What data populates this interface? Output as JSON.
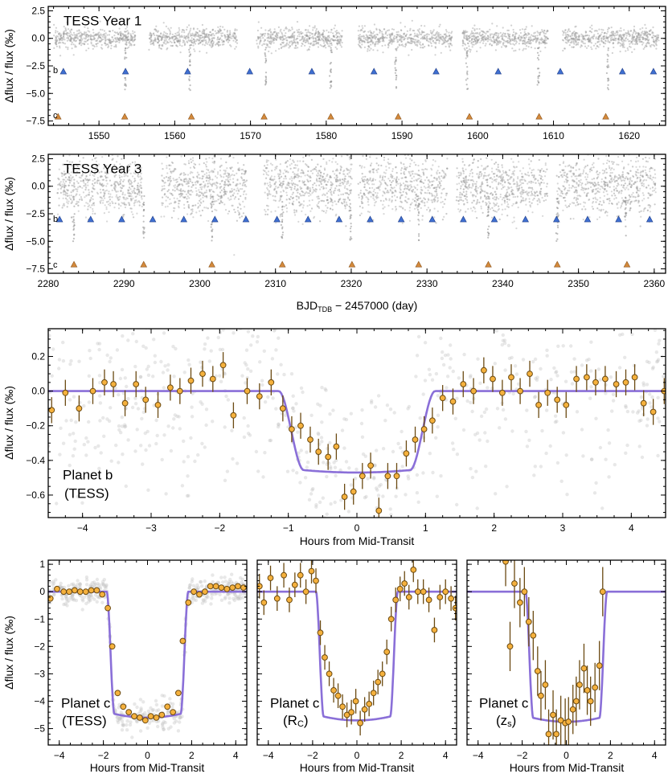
{
  "chart_data": [
    {
      "id": "tess-year1",
      "type": "scatter",
      "title": "TESS Year 1",
      "ylabel": "Δflux / flux (‰)",
      "xlabel": "",
      "xlim": [
        1543.3,
        1624.8
      ],
      "ylim": [
        -7.9,
        2.9
      ],
      "xticks": [
        1550,
        1560,
        1570,
        1580,
        1590,
        1600,
        1610,
        1620
      ],
      "yticks": [
        2.5,
        0.0,
        -2.5,
        -5.0,
        -7.5
      ],
      "ytick_labels": [
        "2.5",
        "0.0",
        "−2.5",
        "−5.0",
        "−7.5"
      ],
      "flux_scatter_per_1000": 0.45,
      "data_gaps": [
        [
          1554.8,
          1556.6
        ],
        [
          1568.3,
          1570.7
        ],
        [
          1582.1,
          1584.2
        ],
        [
          1596.6,
          1598.0
        ],
        [
          1609.3,
          1611.2
        ]
      ],
      "data_range": [
        1544.0,
        1623.9
      ],
      "planet_b": {
        "label": "b",
        "y_marker": -3.0,
        "color": "#3f6fd1",
        "transit_times": [
          1545.3,
          1553.5,
          1561.7,
          1569.9,
          1578.1,
          1586.3,
          1594.5,
          1602.7,
          1610.9,
          1619.1,
          1623.2
        ],
        "dip_times": [
          1553.5,
          1562.0,
          1572.0,
          1580.6,
          1589.2,
          1598.6,
          1608.0,
          1617.2
        ],
        "depth": -4.7
      },
      "planet_c": {
        "label": "c",
        "y_marker": -7.1,
        "color": "#d48a3c",
        "transit_times": [
          1544.6,
          1553.4,
          1562.2,
          1571.8,
          1580.6,
          1589.5,
          1598.9,
          1608.1,
          1616.9
        ]
      }
    },
    {
      "id": "tess-year3",
      "type": "scatter",
      "title": "TESS Year 3",
      "ylabel": "Δflux / flux (‰)",
      "xlabel": "BJD_TDB − 2457000 (day)",
      "xlim": [
        2280,
        2361.5
      ],
      "ylim": [
        -7.9,
        2.9
      ],
      "xticks": [
        2280,
        2290,
        2300,
        2310,
        2320,
        2330,
        2340,
        2350,
        2360
      ],
      "yticks": [
        2.5,
        0.0,
        -2.5,
        -5.0,
        -7.5
      ],
      "ytick_labels": [
        "2.5",
        "0.0",
        "−2.5",
        "−5.0",
        "−7.5"
      ],
      "flux_scatter_per_1000": 1.3,
      "data_gaps": [
        [
          2292.4,
          2294.9
        ],
        [
          2306.2,
          2308.4
        ],
        [
          2320.1,
          2320.9
        ],
        [
          2332.7,
          2333.9
        ],
        [
          2345.9,
          2347.1
        ]
      ],
      "data_range": [
        2281.2,
        2360.2
      ],
      "planet_b": {
        "label": "b",
        "y_marker": -3.0,
        "color": "#3f6fd1",
        "transit_times": [
          2281.5,
          2285.6,
          2289.7,
          2293.8,
          2297.9,
          2302.0,
          2306.1,
          2310.2,
          2314.3,
          2318.4,
          2322.5,
          2326.6,
          2330.7,
          2334.8,
          2338.9,
          2343.0,
          2347.1,
          2351.2,
          2355.3,
          2359.4
        ],
        "dip_times": [
          2283.4,
          2292.6,
          2301.6,
          2310.9,
          2319.9,
          2328.9,
          2338.1,
          2347.2,
          2356.2
        ],
        "depth": -5.0
      },
      "planet_c": {
        "label": "c",
        "y_marker": -7.1,
        "color": "#d48a3c",
        "transit_times": [
          2283.4,
          2292.6,
          2301.6,
          2310.9,
          2320.1,
          2328.9,
          2338.1,
          2347.2,
          2356.4
        ]
      }
    },
    {
      "id": "planet-b-tess",
      "type": "scatter",
      "label_line1": "Planet b",
      "label_line2": "(TESS)",
      "xlabel": "Hours from Mid-Transit",
      "ylabel": "Δflux / flux (‰)",
      "xlim": [
        -4.5,
        4.5
      ],
      "ylim": [
        -0.73,
        0.36
      ],
      "xticks": [
        -4,
        -3,
        -2,
        -1,
        0,
        1,
        2,
        3,
        4
      ],
      "xtick_labels": [
        "−4",
        "−3",
        "−2",
        "−1",
        "0",
        "1",
        "2",
        "3",
        "4"
      ],
      "yticks": [
        0.2,
        0.0,
        -0.2,
        -0.4,
        -0.6
      ],
      "ytick_labels": [
        "0.2",
        "0.0",
        "−0.2",
        "−0.4",
        "−0.6"
      ],
      "model": {
        "t14": 2.28,
        "t23": 1.55,
        "depth": -0.47,
        "curvature": -0.03,
        "color": "#8a6fd8"
      },
      "errorbar": 0.075,
      "binned": [
        {
          "x": -4.45,
          "y": -0.11
        },
        {
          "x": -4.25,
          "y": -0.01
        },
        {
          "x": -4.05,
          "y": -0.1
        },
        {
          "x": -3.85,
          "y": 0.0
        },
        {
          "x": -3.68,
          "y": 0.05
        },
        {
          "x": -3.55,
          "y": 0.04
        },
        {
          "x": -3.38,
          "y": -0.07
        },
        {
          "x": -3.22,
          "y": 0.04
        },
        {
          "x": -3.08,
          "y": -0.05
        },
        {
          "x": -2.9,
          "y": -0.08
        },
        {
          "x": -2.72,
          "y": 0.02
        },
        {
          "x": -2.58,
          "y": 0.0
        },
        {
          "x": -2.42,
          "y": 0.06
        },
        {
          "x": -2.25,
          "y": 0.1
        },
        {
          "x": -2.1,
          "y": 0.07
        },
        {
          "x": -1.95,
          "y": 0.15
        },
        {
          "x": -1.8,
          "y": -0.14
        },
        {
          "x": -1.6,
          "y": 0.0
        },
        {
          "x": -1.42,
          "y": -0.03
        },
        {
          "x": -1.25,
          "y": 0.05
        },
        {
          "x": -1.08,
          "y": -0.1
        },
        {
          "x": -0.95,
          "y": -0.22
        },
        {
          "x": -0.82,
          "y": -0.2
        },
        {
          "x": -0.68,
          "y": -0.28
        },
        {
          "x": -0.56,
          "y": -0.35
        },
        {
          "x": -0.42,
          "y": -0.38
        },
        {
          "x": -0.3,
          "y": -0.32
        },
        {
          "x": -0.18,
          "y": -0.61
        },
        {
          "x": -0.05,
          "y": -0.58
        },
        {
          "x": 0.08,
          "y": -0.49
        },
        {
          "x": 0.2,
          "y": -0.43
        },
        {
          "x": 0.32,
          "y": -0.69
        },
        {
          "x": 0.45,
          "y": -0.49
        },
        {
          "x": 0.58,
          "y": -0.49
        },
        {
          "x": 0.72,
          "y": -0.36
        },
        {
          "x": 0.85,
          "y": -0.28
        },
        {
          "x": 0.98,
          "y": -0.22
        },
        {
          "x": 1.1,
          "y": -0.17
        },
        {
          "x": 1.25,
          "y": -0.04
        },
        {
          "x": 1.4,
          "y": -0.06
        },
        {
          "x": 1.55,
          "y": 0.04
        },
        {
          "x": 1.7,
          "y": 0.0
        },
        {
          "x": 1.85,
          "y": 0.12
        },
        {
          "x": 1.98,
          "y": 0.07
        },
        {
          "x": 2.12,
          "y": -0.01
        },
        {
          "x": 2.25,
          "y": 0.08
        },
        {
          "x": 2.38,
          "y": 0.0
        },
        {
          "x": 2.52,
          "y": 0.1
        },
        {
          "x": 2.65,
          "y": -0.08
        },
        {
          "x": 2.78,
          "y": -0.01
        },
        {
          "x": 2.92,
          "y": -0.05
        },
        {
          "x": 3.05,
          "y": -0.08
        },
        {
          "x": 3.2,
          "y": 0.07
        },
        {
          "x": 3.35,
          "y": 0.08
        },
        {
          "x": 3.48,
          "y": 0.05
        },
        {
          "x": 3.62,
          "y": 0.07
        },
        {
          "x": 3.78,
          "y": 0.04
        },
        {
          "x": 3.92,
          "y": 0.05
        },
        {
          "x": 4.05,
          "y": 0.08
        },
        {
          "x": 4.18,
          "y": -0.07
        },
        {
          "x": 4.32,
          "y": -0.12
        },
        {
          "x": 4.48,
          "y": 0.0
        }
      ]
    },
    {
      "id": "planet-c-tess",
      "type": "scatter",
      "label_line1": "Planet c",
      "label_line2": "(TESS)",
      "xlabel": "Hours from Mid-Transit",
      "ylabel": "Δflux / flux (‰)",
      "xlim": [
        -4.5,
        4.5
      ],
      "ylim": [
        -5.6,
        1.15
      ],
      "xticks": [
        -4,
        -2,
        0,
        2,
        4
      ],
      "xtick_labels": [
        "−4",
        "−2",
        "0",
        "2",
        "4"
      ],
      "yticks": [
        1,
        0,
        -1,
        -2,
        -3,
        -4,
        -5
      ],
      "ytick_labels": [
        "1",
        "0",
        "−1",
        "−2",
        "−3",
        "−4",
        "−5"
      ],
      "model": {
        "t14": 3.7,
        "t23": 3.0,
        "depth": -4.6,
        "curvature": -0.15,
        "color": "#8a6fd8"
      },
      "errorbar": 0.1,
      "binned": [
        {
          "x": -4.4,
          "y": -0.25
        },
        {
          "x": -4.1,
          "y": 0.1
        },
        {
          "x": -3.8,
          "y": 0.0
        },
        {
          "x": -3.55,
          "y": 0.0
        },
        {
          "x": -3.3,
          "y": 0.05
        },
        {
          "x": -3.05,
          "y": 0.0
        },
        {
          "x": -2.8,
          "y": 0.0
        },
        {
          "x": -2.55,
          "y": 0.05
        },
        {
          "x": -2.3,
          "y": 0.05
        },
        {
          "x": -2.05,
          "y": -0.1
        },
        {
          "x": -1.8,
          "y": -0.6
        },
        {
          "x": -1.6,
          "y": -2.0
        },
        {
          "x": -1.35,
          "y": -3.7
        },
        {
          "x": -1.1,
          "y": -4.2
        },
        {
          "x": -0.85,
          "y": -4.4
        },
        {
          "x": -0.6,
          "y": -4.55
        },
        {
          "x": -0.35,
          "y": -4.6
        },
        {
          "x": -0.1,
          "y": -4.7
        },
        {
          "x": 0.15,
          "y": -4.55
        },
        {
          "x": 0.4,
          "y": -4.6
        },
        {
          "x": 0.65,
          "y": -4.5
        },
        {
          "x": 0.9,
          "y": -4.2
        },
        {
          "x": 1.15,
          "y": -4.4
        },
        {
          "x": 1.4,
          "y": -3.7
        },
        {
          "x": 1.6,
          "y": -1.8
        },
        {
          "x": 1.85,
          "y": -0.4
        },
        {
          "x": 2.1,
          "y": 0.0
        },
        {
          "x": 2.35,
          "y": -0.1
        },
        {
          "x": 2.6,
          "y": 0.0
        },
        {
          "x": 2.85,
          "y": 0.2
        },
        {
          "x": 3.1,
          "y": 0.2
        },
        {
          "x": 3.35,
          "y": 0.15
        },
        {
          "x": 3.6,
          "y": 0.1
        },
        {
          "x": 3.85,
          "y": 0.15
        },
        {
          "x": 4.1,
          "y": 0.2
        },
        {
          "x": 4.35,
          "y": 0.15
        }
      ]
    },
    {
      "id": "planet-c-rc",
      "type": "scatter",
      "label_line1": "Planet c",
      "label_line2": "(R",
      "label_sub": "C",
      "label_close": ")",
      "xlabel": "Hours from Mid-Transit",
      "xlim": [
        -4.5,
        4.5
      ],
      "ylim": [
        -5.6,
        1.15
      ],
      "xticks": [
        -4,
        -2,
        0,
        2,
        4
      ],
      "xtick_labels": [
        "−4",
        "−2",
        "0",
        "2",
        "4"
      ],
      "yticks": [
        1,
        0,
        -1,
        -2,
        -3,
        -4,
        -5
      ],
      "model": {
        "t14": 3.7,
        "t23": 3.0,
        "depth": -4.7,
        "curvature": -0.15,
        "color": "#8a6fd8"
      },
      "errorbar": 0.45,
      "binned": [
        {
          "x": -4.4,
          "y": 0.2
        },
        {
          "x": -4.2,
          "y": -0.4
        },
        {
          "x": -3.9,
          "y": 0.5
        },
        {
          "x": -3.6,
          "y": -0.25
        },
        {
          "x": -3.3,
          "y": 0.6
        },
        {
          "x": -3.05,
          "y": -0.3
        },
        {
          "x": -2.8,
          "y": 0.25
        },
        {
          "x": -2.55,
          "y": 0.6
        },
        {
          "x": -2.3,
          "y": 0.0
        },
        {
          "x": -2.05,
          "y": 0.75
        },
        {
          "x": -1.85,
          "y": 0.4
        },
        {
          "x": -1.65,
          "y": -1.5
        },
        {
          "x": -1.45,
          "y": -2.4
        },
        {
          "x": -1.25,
          "y": -3.0
        },
        {
          "x": -1.05,
          "y": -3.6
        },
        {
          "x": -0.85,
          "y": -3.8
        },
        {
          "x": -0.65,
          "y": -4.2
        },
        {
          "x": -0.45,
          "y": -4.5
        },
        {
          "x": -0.25,
          "y": -4.4
        },
        {
          "x": -0.05,
          "y": -4.0
        },
        {
          "x": 0.15,
          "y": -4.8
        },
        {
          "x": 0.35,
          "y": -4.3
        },
        {
          "x": 0.55,
          "y": -4.1
        },
        {
          "x": 0.75,
          "y": -3.7
        },
        {
          "x": 0.95,
          "y": -3.3
        },
        {
          "x": 1.15,
          "y": -3.0
        },
        {
          "x": 1.35,
          "y": -2.2
        },
        {
          "x": 1.55,
          "y": -1.0
        },
        {
          "x": 1.75,
          "y": -0.3
        },
        {
          "x": 1.95,
          "y": 0.1
        },
        {
          "x": 2.15,
          "y": 0.3
        },
        {
          "x": 2.35,
          "y": -0.2
        },
        {
          "x": 2.55,
          "y": 0.8
        },
        {
          "x": 2.75,
          "y": 0.0
        },
        {
          "x": 3.0,
          "y": 0.0
        },
        {
          "x": 3.25,
          "y": -0.3
        },
        {
          "x": 3.5,
          "y": -1.4
        },
        {
          "x": 3.75,
          "y": -0.2
        },
        {
          "x": 4.0,
          "y": 0.0
        },
        {
          "x": 4.25,
          "y": -0.25
        },
        {
          "x": 4.45,
          "y": -0.6
        }
      ]
    },
    {
      "id": "planet-c-zs",
      "type": "scatter",
      "label_line1": "Planet c",
      "label_line2": "(z",
      "label_sub": "s",
      "label_close": ")",
      "xlabel": "Hours from Mid-Transit",
      "xlim": [
        -4.5,
        4.5
      ],
      "ylim": [
        -5.6,
        1.15
      ],
      "xticks": [
        -4,
        -2,
        0,
        2,
        4
      ],
      "xtick_labels": [
        "−4",
        "−2",
        "0",
        "2",
        "4"
      ],
      "yticks": [
        1,
        0,
        -1,
        -2,
        -3,
        -4,
        -5
      ],
      "model": {
        "t14": 3.7,
        "t23": 3.0,
        "depth": -4.75,
        "curvature": -0.15,
        "color": "#8a6fd8"
      },
      "errorbar": 0.9,
      "binned": [
        {
          "x": -2.75,
          "y": 1.1
        },
        {
          "x": -2.55,
          "y": -2.0
        },
        {
          "x": -2.35,
          "y": 0.3
        },
        {
          "x": -2.1,
          "y": -0.4
        },
        {
          "x": -1.9,
          "y": 0.0
        },
        {
          "x": -1.7,
          "y": -1.1
        },
        {
          "x": -1.5,
          "y": -1.6
        },
        {
          "x": -1.3,
          "y": -2.9
        },
        {
          "x": -1.15,
          "y": -3.8
        },
        {
          "x": -0.95,
          "y": -3.4
        },
        {
          "x": -0.8,
          "y": -5.2
        },
        {
          "x": -0.6,
          "y": -4.5
        },
        {
          "x": -0.45,
          "y": -5.2
        },
        {
          "x": -0.25,
          "y": -4.7
        },
        {
          "x": -0.05,
          "y": -4.8
        },
        {
          "x": 0.1,
          "y": -4.75
        },
        {
          "x": 0.3,
          "y": -4.3
        },
        {
          "x": 0.45,
          "y": -4.0
        },
        {
          "x": 0.6,
          "y": -3.4
        },
        {
          "x": 0.8,
          "y": -2.8
        },
        {
          "x": 0.95,
          "y": -3.6
        },
        {
          "x": 1.1,
          "y": -4.0
        },
        {
          "x": 1.3,
          "y": -3.5
        },
        {
          "x": 1.5,
          "y": -2.7
        },
        {
          "x": 1.65,
          "y": 0.0
        }
      ]
    }
  ]
}
